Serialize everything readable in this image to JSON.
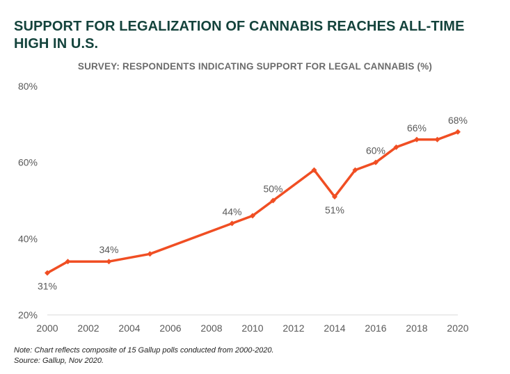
{
  "title": "SUPPORT FOR LEGALIZATION OF CANNABIS REACHES ALL-TIME HIGH IN U.S.",
  "subtitle": "SURVEY: RESPONDENTS INDICATING SUPPORT FOR LEGAL CANNABIS (%)",
  "notes": {
    "note": "Note: Chart reflects composite of 15 Gallup polls conducted from 2000-2020.",
    "source": "Source: Gallup, Nov 2020."
  },
  "colors": {
    "line": "#f04e23",
    "axis_text": "#595959",
    "label_text": "#595959",
    "axis_line": "#d9d9d9"
  },
  "chart_data": {
    "type": "line",
    "title": "SUPPORT FOR LEGALIZATION OF CANNABIS REACHES ALL-TIME HIGH IN U.S.",
    "subtitle": "SURVEY: RESPONDENTS INDICATING SUPPORT FOR LEGAL CANNABIS (%)",
    "xlabel": "",
    "ylabel": "",
    "xlim": [
      2000,
      2020
    ],
    "ylim": [
      20,
      80
    ],
    "x_ticks": [
      "2000",
      "2002",
      "2004",
      "2006",
      "2008",
      "2010",
      "2012",
      "2014",
      "2016",
      "2018",
      "2020"
    ],
    "y_ticks": [
      "20%",
      "40%",
      "60%",
      "80%"
    ],
    "grid": false,
    "series": [
      {
        "x": [
          2000,
          2001,
          2003,
          2005,
          2009,
          2010,
          2011,
          2013,
          2014,
          2015,
          2016,
          2017,
          2018,
          2019,
          2020
        ],
        "values": [
          31,
          34,
          34,
          36,
          44,
          46,
          50,
          58,
          51,
          58,
          60,
          64,
          66,
          66,
          68
        ]
      }
    ],
    "data_labels": [
      {
        "x": 2000,
        "y": 31,
        "text": "31%",
        "position": "below"
      },
      {
        "x": 2003,
        "y": 34,
        "text": "34%",
        "position": "above"
      },
      {
        "x": 2009,
        "y": 44,
        "text": "44%",
        "position": "above"
      },
      {
        "x": 2011,
        "y": 50,
        "text": "50%",
        "position": "above"
      },
      {
        "x": 2014,
        "y": 51,
        "text": "51%",
        "position": "below"
      },
      {
        "x": 2016,
        "y": 60,
        "text": "60%",
        "position": "above"
      },
      {
        "x": 2018,
        "y": 66,
        "text": "66%",
        "position": "above"
      },
      {
        "x": 2020,
        "y": 68,
        "text": "68%",
        "position": "above"
      }
    ]
  }
}
